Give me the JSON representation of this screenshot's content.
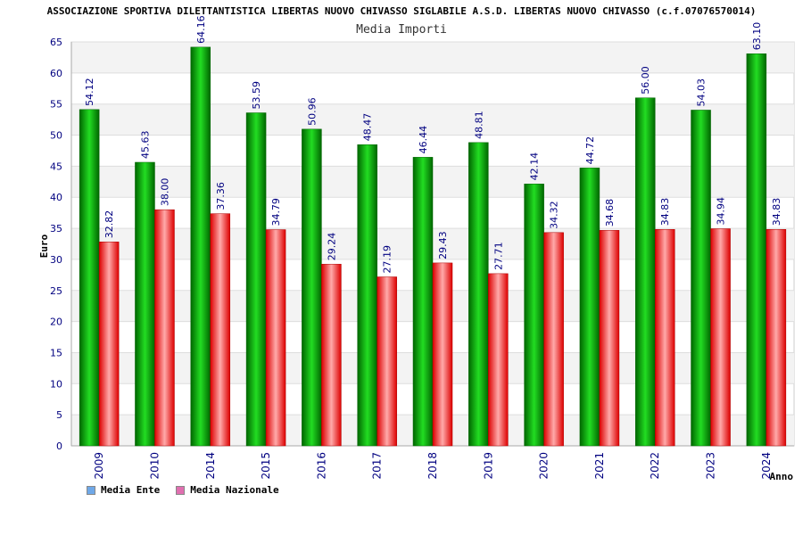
{
  "header": {
    "title": "ASSOCIAZIONE SPORTIVA DILETTANTISTICA LIBERTAS NUOVO CHIVASSO SIGLABILE A.S.D. LIBERTAS NUOVO CHIVASSO (c.f.07076570014)",
    "subtitle": "Media Importi"
  },
  "legend": {
    "items": [
      {
        "label": "Media Ente",
        "color": "#6fa8e8"
      },
      {
        "label": "Media Nazionale",
        "color": "#e06fb0"
      }
    ]
  },
  "chart_data": {
    "type": "bar",
    "title": "Media Importi",
    "xlabel": "Anno",
    "ylabel": "Euro",
    "ylim": [
      0,
      65
    ],
    "yticks": [
      0,
      5,
      10,
      15,
      20,
      25,
      30,
      35,
      40,
      45,
      50,
      55,
      60,
      65
    ],
    "categories": [
      "2009",
      "2010",
      "2014",
      "2015",
      "2016",
      "2017",
      "2018",
      "2019",
      "2020",
      "2021",
      "2022",
      "2023",
      "2024"
    ],
    "series": [
      {
        "name": "Media Ente",
        "color": "#00aa00",
        "values": [
          54.12,
          45.63,
          64.16,
          53.59,
          50.96,
          48.47,
          46.44,
          48.81,
          42.14,
          44.72,
          56.0,
          54.03,
          63.1
        ],
        "labels": [
          "54.12",
          "45.63",
          "64.16",
          "53.59",
          "50.96",
          "48.47",
          "46.44",
          "48.81",
          "42.14",
          "44.72",
          "56.00",
          "54.03",
          "63.10"
        ]
      },
      {
        "name": "Media Nazionale",
        "color": "#dd0000",
        "values": [
          32.82,
          38.0,
          37.36,
          34.79,
          29.24,
          27.19,
          29.43,
          27.71,
          34.32,
          34.68,
          34.83,
          34.94,
          34.83
        ],
        "labels": [
          "32.82",
          "38.00",
          "37.36",
          "34.79",
          "29.24",
          "27.19",
          "29.43",
          "27.71",
          "34.32",
          "34.68",
          "34.83",
          "34.94",
          "34.83"
        ]
      }
    ],
    "grid": true,
    "legend_position": "bottom-left"
  }
}
